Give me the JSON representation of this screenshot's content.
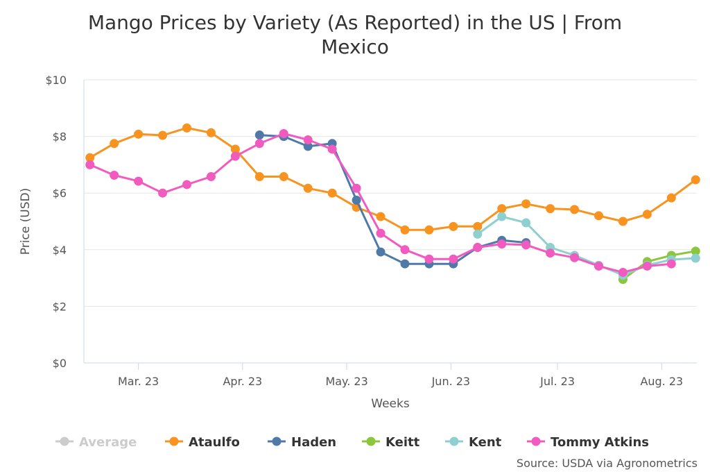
{
  "chart_data": {
    "type": "line",
    "title_lines": [
      "Mango Prices by Variety (As Reported) in the US | From",
      "Mexico"
    ],
    "xlabel": "Weeks",
    "ylabel": "Price (USD)",
    "ylim": [
      0,
      10
    ],
    "y_ticks": [
      0,
      2,
      4,
      6,
      8,
      10
    ],
    "y_tick_labels": [
      "$0",
      "$2",
      "$4",
      "$6",
      "$8",
      "$10"
    ],
    "x_ticks": [
      2,
      6.3,
      10.6,
      14.9,
      19.3,
      23.6
    ],
    "x_tick_labels": [
      "Mar. 23",
      "Apr. 23",
      "May. 23",
      "Jun. 23",
      "Jul. 23",
      "Aug. 23"
    ],
    "x_range": [
      -0.25,
      25.05
    ],
    "grid": "horizontal",
    "legend_position": "bottom",
    "series": [
      {
        "name": "Average",
        "color": "#cccccc",
        "visible": false,
        "points": []
      },
      {
        "name": "Ataulfo",
        "color": "#f7931e",
        "points": [
          [
            0,
            7.25
          ],
          [
            1,
            7.75
          ],
          [
            2,
            8.08
          ],
          [
            3,
            8.04
          ],
          [
            4,
            8.3
          ],
          [
            5,
            8.13
          ],
          [
            6,
            7.55
          ],
          [
            7,
            6.58
          ],
          [
            8,
            6.58
          ],
          [
            9,
            6.17
          ],
          [
            10,
            6.0
          ],
          [
            11,
            5.5
          ],
          [
            12,
            5.17
          ],
          [
            13,
            4.7
          ],
          [
            14,
            4.7
          ],
          [
            15,
            4.82
          ],
          [
            16,
            4.82
          ],
          [
            17,
            5.45
          ],
          [
            18,
            5.62
          ],
          [
            19,
            5.45
          ],
          [
            20,
            5.42
          ],
          [
            21,
            5.2
          ],
          [
            22,
            5.0
          ],
          [
            23,
            5.25
          ],
          [
            24,
            5.83
          ],
          [
            25,
            6.47
          ]
        ]
      },
      {
        "name": "Haden",
        "color": "#4f79a8",
        "points": [
          [
            7,
            8.05
          ],
          [
            8,
            8.0
          ],
          [
            9,
            7.65
          ],
          [
            10,
            7.75
          ],
          [
            11,
            5.75
          ],
          [
            12,
            3.92
          ],
          [
            13,
            3.5
          ],
          [
            14,
            3.5
          ],
          [
            15,
            3.5
          ],
          [
            16,
            4.08
          ],
          [
            17,
            4.33
          ],
          [
            18,
            4.25
          ]
        ]
      },
      {
        "name": "Keitt",
        "color": "#8cc63f",
        "points": [
          [
            22,
            2.95
          ],
          [
            23,
            3.58
          ],
          [
            24,
            3.8
          ],
          [
            25,
            3.95
          ]
        ]
      },
      {
        "name": "Kent",
        "color": "#8ecfd0",
        "points": [
          [
            16,
            4.55
          ],
          [
            17,
            5.17
          ],
          [
            18,
            4.95
          ],
          [
            19,
            4.08
          ],
          [
            20,
            3.8
          ],
          [
            21,
            3.45
          ],
          [
            22,
            3.1
          ],
          [
            23,
            3.45
          ],
          [
            24,
            3.65
          ],
          [
            25,
            3.7
          ]
        ]
      },
      {
        "name": "Tommy Atkins",
        "color": "#f15bbf",
        "points": [
          [
            0,
            7.0
          ],
          [
            1,
            6.63
          ],
          [
            2,
            6.42
          ],
          [
            3,
            6.0
          ],
          [
            4,
            6.3
          ],
          [
            5,
            6.58
          ],
          [
            6,
            7.3
          ],
          [
            7,
            7.75
          ],
          [
            8,
            8.1
          ],
          [
            9,
            7.88
          ],
          [
            10,
            7.55
          ],
          [
            11,
            6.17
          ],
          [
            12,
            4.58
          ],
          [
            13,
            4.0
          ],
          [
            14,
            3.67
          ],
          [
            15,
            3.67
          ],
          [
            16,
            4.08
          ],
          [
            17,
            4.2
          ],
          [
            18,
            4.17
          ],
          [
            19,
            3.88
          ],
          [
            20,
            3.72
          ],
          [
            21,
            3.42
          ],
          [
            22,
            3.2
          ],
          [
            23,
            3.42
          ],
          [
            24,
            3.5
          ]
        ]
      }
    ],
    "credits": "Source: USDA via Agronometrics"
  }
}
